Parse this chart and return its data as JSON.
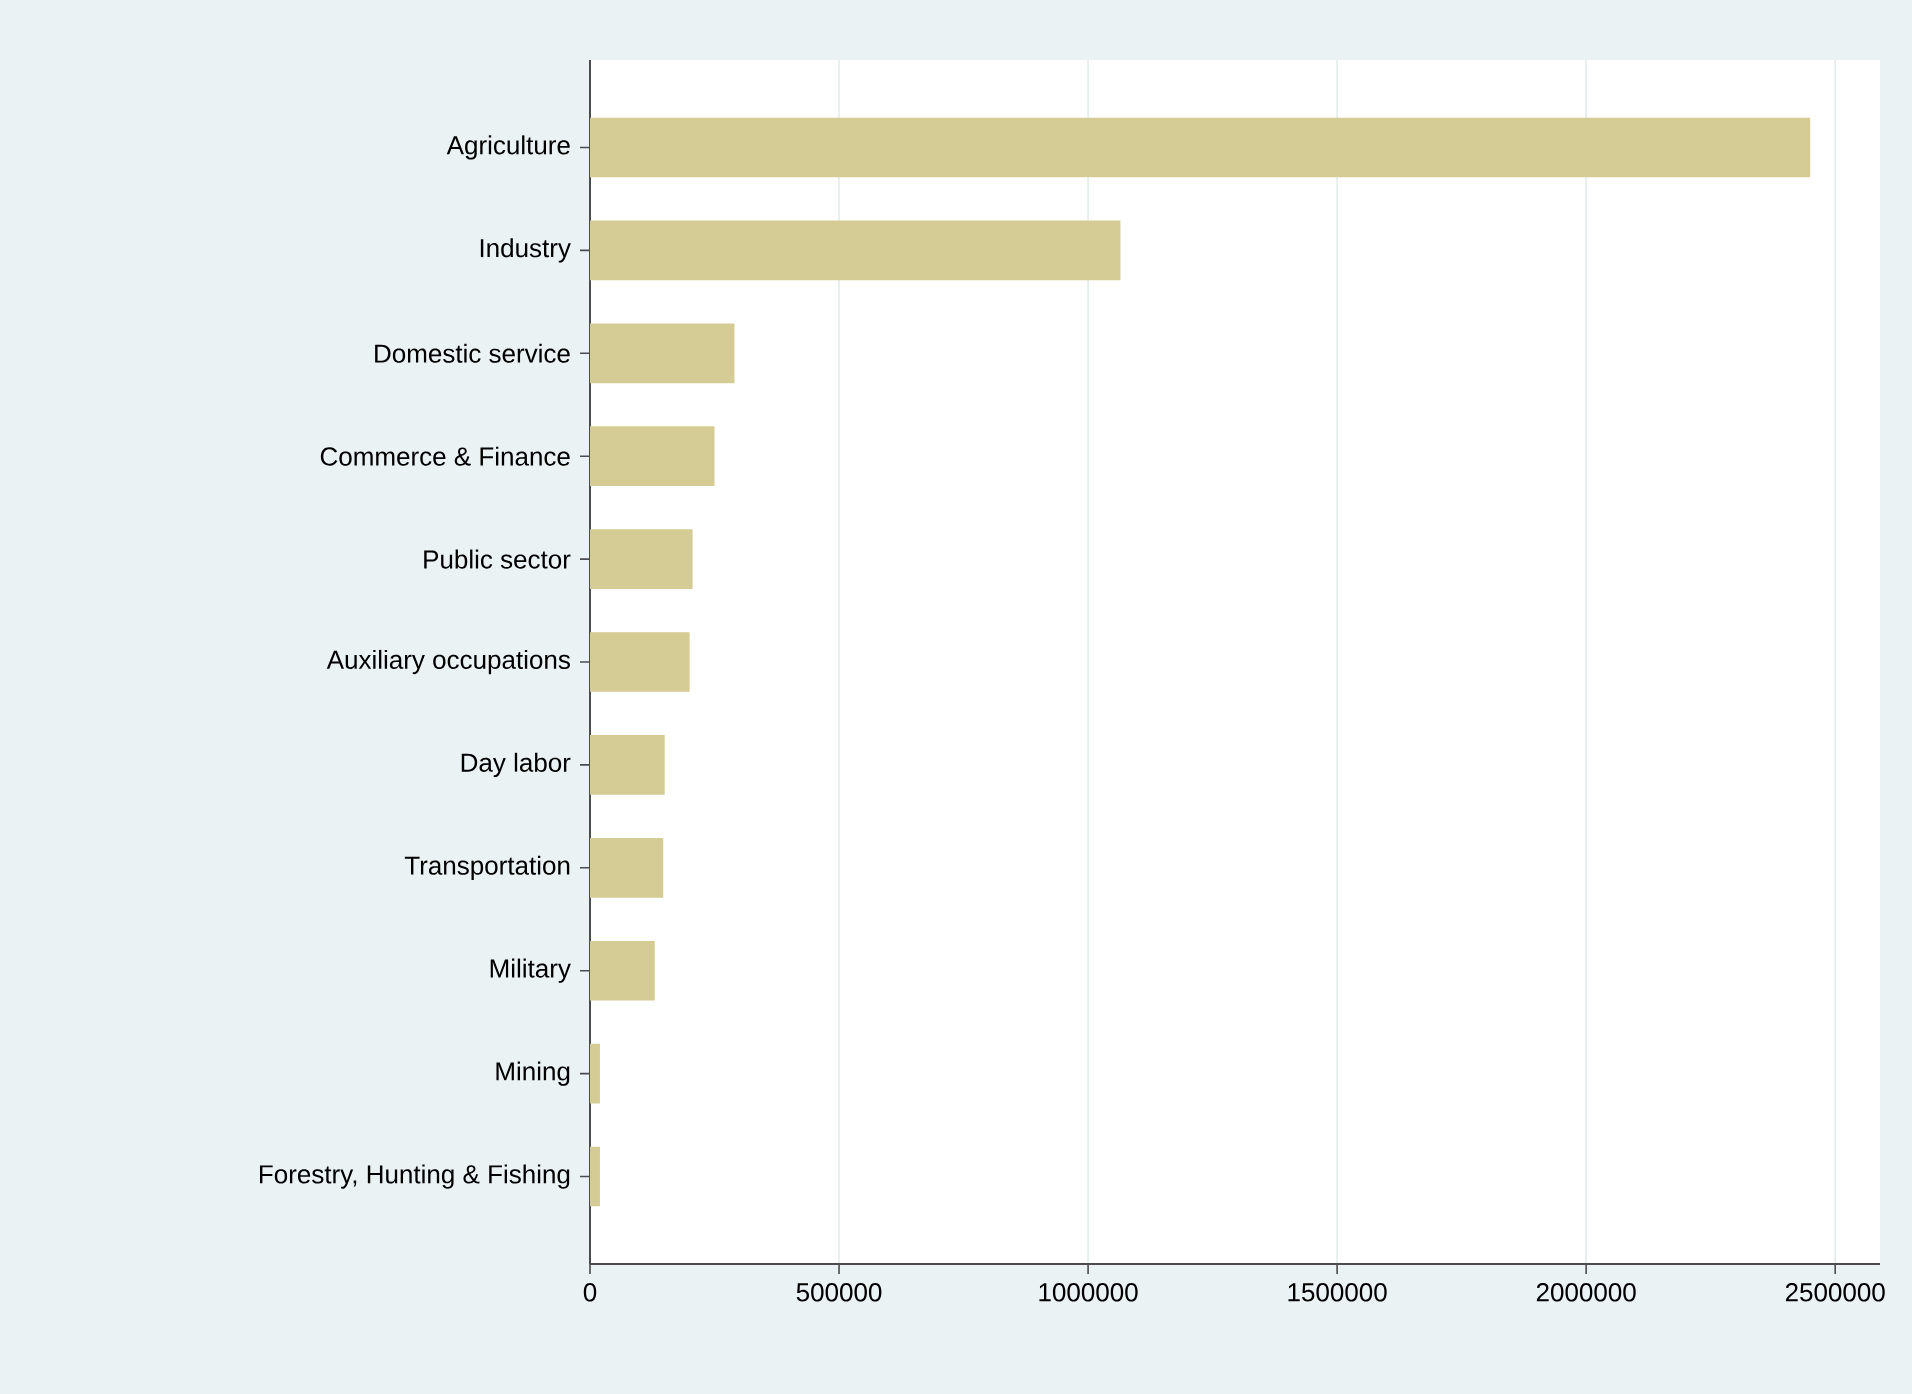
{
  "chart_data": {
    "type": "bar",
    "orientation": "horizontal",
    "categories": [
      "Agriculture",
      "Industry",
      "Domestic service",
      "Commerce & Finance",
      "Public sector",
      "Auxiliary occupations",
      "Day labor",
      "Transportation",
      "Military",
      "Mining",
      "Forestry, Hunting & Fishing"
    ],
    "values": [
      2450000,
      1065000,
      290000,
      250000,
      206000,
      200000,
      150000,
      147000,
      130000,
      20000,
      20000
    ],
    "color": "#d5cb95",
    "xlim": [
      0,
      2590000
    ],
    "xticks": [
      0,
      500000,
      1000000,
      1500000,
      2000000,
      2500000
    ],
    "grid": "x"
  }
}
